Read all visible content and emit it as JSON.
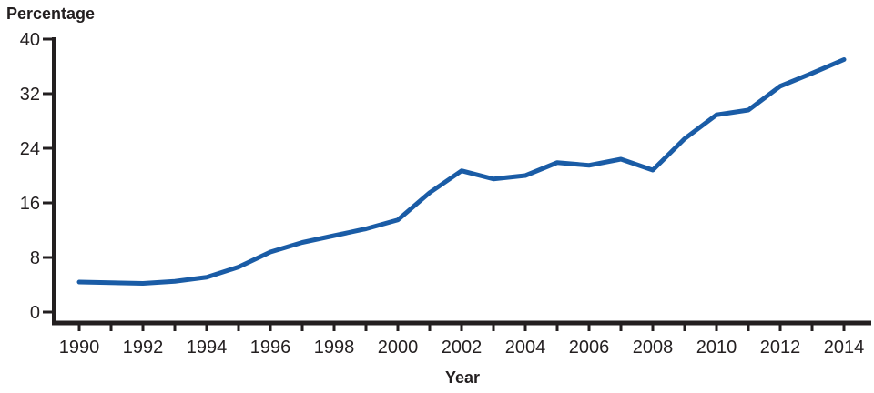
{
  "chart_data": {
    "type": "line",
    "title": "",
    "ylabel": "Percentage",
    "xlabel": "Year",
    "x": [
      1990,
      1991,
      1992,
      1993,
      1994,
      1995,
      1996,
      1997,
      1998,
      1999,
      2000,
      2001,
      2002,
      2003,
      2004,
      2005,
      2006,
      2007,
      2008,
      2009,
      2010,
      2011,
      2012,
      2013,
      2014
    ],
    "values": [
      4.4,
      4.3,
      4.2,
      4.5,
      5.1,
      6.6,
      8.8,
      10.2,
      11.2,
      12.2,
      13.5,
      17.5,
      20.7,
      19.5,
      20.0,
      21.9,
      21.5,
      22.4,
      20.8,
      25.4,
      28.9,
      29.6,
      33.1,
      35.0,
      37.0
    ],
    "ylim": [
      0,
      40
    ],
    "yticks": [
      0,
      8,
      16,
      24,
      32,
      40
    ],
    "xtick_labeled_years": [
      1990,
      1992,
      1994,
      1996,
      1998,
      2000,
      2002,
      2004,
      2006,
      2008,
      2010,
      2012,
      2014
    ],
    "grid": false,
    "legend": "none",
    "line_color": "#1a5ca6",
    "axis_color": "#231f20",
    "background_color": "#ffffff"
  }
}
